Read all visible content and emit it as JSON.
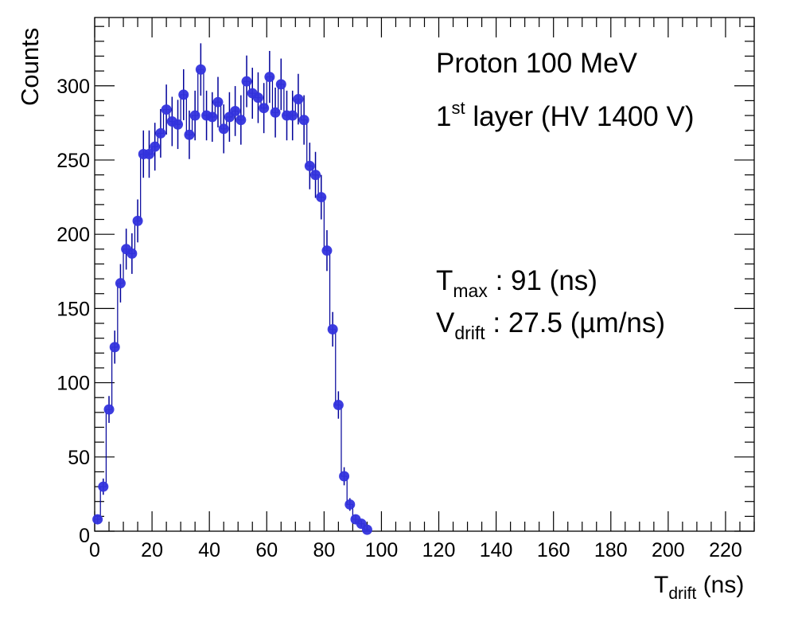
{
  "chart_data": {
    "type": "scatter",
    "title": "",
    "xlabel": {
      "main": "T",
      "sub": "drift",
      "unit": "(ns)"
    },
    "ylabel": "Counts",
    "xlim": [
      0,
      230
    ],
    "ylim": [
      0,
      346
    ],
    "x_major_ticks": [
      0,
      20,
      40,
      60,
      80,
      100,
      120,
      140,
      160,
      180,
      200,
      220
    ],
    "x_minor_step": 5,
    "y_major_ticks": [
      0,
      50,
      100,
      150,
      200,
      250,
      300
    ],
    "y_minor_step": 10,
    "grid": false,
    "marker_color": "#3333dd",
    "line_color": "#000099",
    "bin_width": 2,
    "errors": "sqrt(N)",
    "x": [
      1,
      3,
      5,
      7,
      9,
      11,
      13,
      15,
      17,
      19,
      21,
      23,
      25,
      27,
      29,
      31,
      33,
      35,
      37,
      39,
      41,
      43,
      45,
      47,
      49,
      51,
      53,
      55,
      57,
      59,
      61,
      63,
      65,
      67,
      69,
      71,
      73,
      75,
      77,
      79,
      81,
      83,
      85,
      87,
      89,
      91,
      93,
      95
    ],
    "y": [
      8,
      30,
      82,
      124,
      167,
      190,
      187,
      209,
      254,
      254,
      259,
      268,
      284,
      276,
      274,
      294,
      267,
      280,
      311,
      280,
      279,
      289,
      271,
      279,
      283,
      277,
      303,
      295,
      292,
      285,
      306,
      282,
      301,
      280,
      280,
      291,
      277,
      246,
      240,
      225,
      189,
      136,
      85,
      37,
      18,
      8,
      5,
      1
    ],
    "annotations": {
      "line1": "Proton 100 MeV",
      "line2_num": "1",
      "line2_sup": "st",
      "line2_rest": " layer (HV 1400 V)",
      "tmax_main": "T",
      "tmax_sub": "max",
      "tmax_value": " : 91 (ns)",
      "vdrift_main": "V",
      "vdrift_sub": "drift",
      "vdrift_value": " : 27.5 (µm/ns)"
    }
  }
}
